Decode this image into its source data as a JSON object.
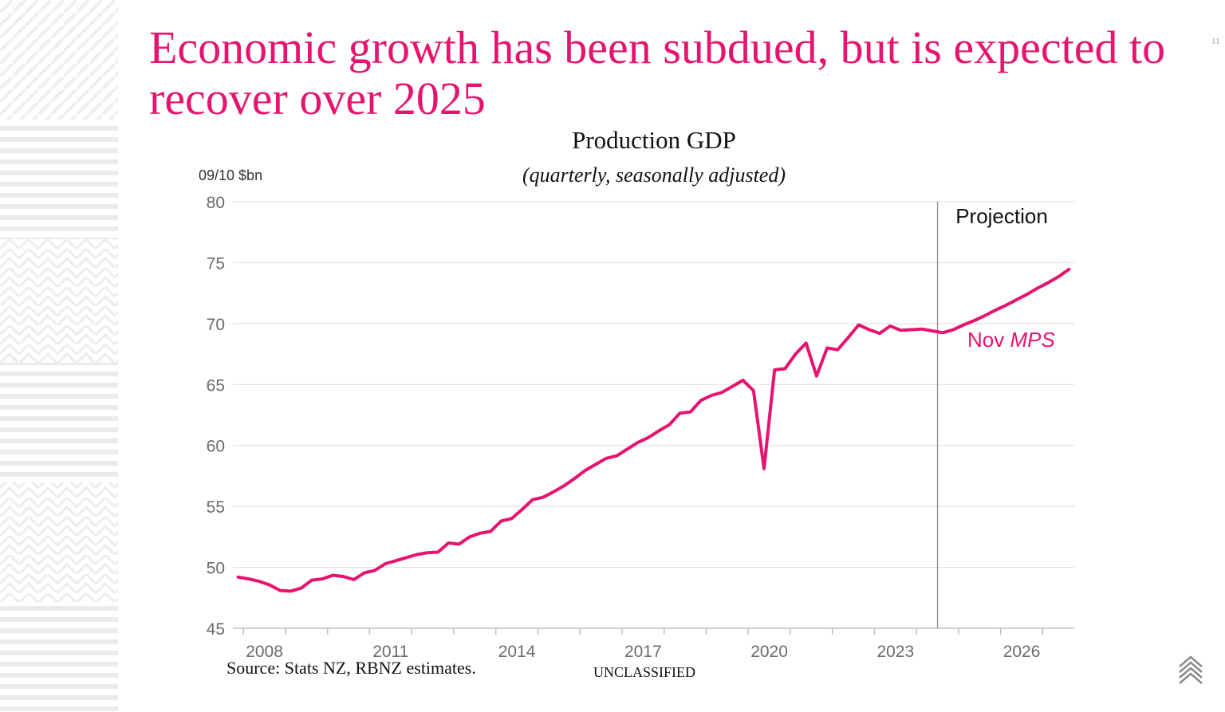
{
  "slide": {
    "title": "Economic growth has been subdued, but is expected to recover over 2025",
    "page_number": "11",
    "source": "Source: Stats NZ, RBNZ estimates.",
    "classification": "UNCLASSIFIED"
  },
  "colors": {
    "accent": "#e6146e",
    "grid": "#e2e2e2",
    "axis_text": "#6b6b6b",
    "divider": "#9a9a9a"
  },
  "chart_data": {
    "type": "line",
    "title": "Production GDP",
    "subtitle": "(quarterly, seasonally adjusted)",
    "ylabel": "09/10 $bn",
    "xlabel": "",
    "ylim": [
      45,
      80
    ],
    "yticks": [
      45,
      50,
      55,
      60,
      65,
      70,
      75,
      80
    ],
    "xlim": [
      2007.75,
      2027.75
    ],
    "xtick_labels": [
      "2008",
      "2011",
      "2014",
      "2017",
      "2020",
      "2023",
      "2026"
    ],
    "grid": true,
    "projection_start": 2024.5,
    "projection_label": "Projection",
    "series_label": {
      "prefix": "Nov ",
      "italic": "MPS"
    },
    "series": [
      {
        "name": "Nov MPS",
        "x": [
          2007.875,
          2008.125,
          2008.375,
          2008.625,
          2008.875,
          2009.125,
          2009.375,
          2009.625,
          2009.875,
          2010.125,
          2010.375,
          2010.625,
          2010.875,
          2011.125,
          2011.375,
          2011.625,
          2011.875,
          2012.125,
          2012.375,
          2012.625,
          2012.875,
          2013.125,
          2013.375,
          2013.625,
          2013.875,
          2014.125,
          2014.375,
          2014.625,
          2014.875,
          2015.125,
          2015.375,
          2015.625,
          2015.875,
          2016.125,
          2016.375,
          2016.625,
          2016.875,
          2017.125,
          2017.375,
          2017.625,
          2017.875,
          2018.125,
          2018.375,
          2018.625,
          2018.875,
          2019.125,
          2019.375,
          2019.625,
          2019.875,
          2020.125,
          2020.375,
          2020.625,
          2020.875,
          2021.125,
          2021.375,
          2021.625,
          2021.875,
          2022.125,
          2022.375,
          2022.625,
          2022.875,
          2023.125,
          2023.375,
          2023.625,
          2023.875,
          2024.125,
          2024.375,
          2024.625,
          2024.875,
          2025.125,
          2025.375,
          2025.625,
          2025.875,
          2026.125,
          2026.375,
          2026.625,
          2026.875,
          2027.125,
          2027.375,
          2027.625
        ],
        "values": [
          49.2,
          49.05,
          48.85,
          48.55,
          48.1,
          48.05,
          48.3,
          48.95,
          49.05,
          49.35,
          49.25,
          49.0,
          49.55,
          49.75,
          50.3,
          50.55,
          50.8,
          51.05,
          51.2,
          51.25,
          52.0,
          51.9,
          52.5,
          52.8,
          52.95,
          53.8,
          54.0,
          54.75,
          55.55,
          55.75,
          56.2,
          56.7,
          57.3,
          57.95,
          58.45,
          58.95,
          59.15,
          59.7,
          60.25,
          60.65,
          61.2,
          61.7,
          62.65,
          62.75,
          63.7,
          64.1,
          64.35,
          64.85,
          65.35,
          64.5,
          58.1,
          66.2,
          66.3,
          67.5,
          68.4,
          65.7,
          68.0,
          67.85,
          68.85,
          69.9,
          69.5,
          69.2,
          69.8,
          69.45,
          69.5,
          69.55,
          69.4,
          69.25,
          69.5,
          69.9,
          70.25,
          70.65,
          71.1,
          71.5,
          71.95,
          72.4,
          72.9,
          73.35,
          73.85,
          74.45
        ]
      }
    ]
  }
}
